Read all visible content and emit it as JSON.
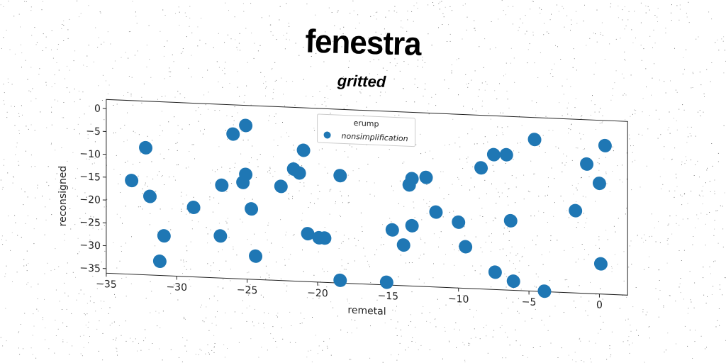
{
  "page": {
    "title": "fenestra"
  },
  "colors": {
    "marker": "#1f77b4",
    "axes": "#222222",
    "background": "#ffffff"
  },
  "chart_data": {
    "type": "scatter",
    "title": "gritted",
    "xlabel": "remetal",
    "ylabel": "reconsigned",
    "xlim": [
      -35,
      2
    ],
    "ylim": [
      -36,
      2
    ],
    "xticks": [
      -35,
      -30,
      -25,
      -20,
      -15,
      -10,
      -5,
      0
    ],
    "yticks": [
      0,
      -5,
      -10,
      -15,
      -20,
      -25,
      -30,
      -35
    ],
    "xtick_labels": [
      "−35",
      "−30",
      "−25",
      "−20",
      "−15",
      "−10",
      "−5",
      "0"
    ],
    "ytick_labels": [
      "0",
      "−5",
      "−10",
      "−15",
      "−20",
      "−25",
      "−30",
      "−35"
    ],
    "grid": false,
    "legend": {
      "title": "erump",
      "placement": "top-center"
    },
    "series": [
      {
        "name": "nonsimplification",
        "color": "#1f77b4",
        "x": [
          -33.2,
          -32.2,
          -31.9,
          -30.9,
          -31.2,
          -28.8,
          -26.8,
          -26.9,
          -26.0,
          -25.1,
          -25.3,
          -25.1,
          -24.7,
          -24.4,
          -22.6,
          -21.7,
          -21.3,
          -21.0,
          -20.7,
          -19.9,
          -19.5,
          -18.4,
          -18.4,
          -16.2,
          -15.1,
          -14.7,
          -13.9,
          -13.5,
          -13.3,
          -13.3,
          -12.3,
          -11.6,
          -10.0,
          -9.5,
          -8.4,
          -7.5,
          -7.4,
          -6.6,
          -6.3,
          -6.1,
          -3.9,
          -4.6,
          -1.7,
          -0.9,
          0.1,
          0.0,
          0.4
        ],
        "y": [
          -15.5,
          -8.2,
          -18.8,
          -27.3,
          -32.9,
          -20.8,
          -15.7,
          -26.8,
          -4.4,
          -2.4,
          -14.9,
          -13.1,
          -20.6,
          -30.9,
          -15.4,
          -11.5,
          -12.3,
          -7.3,
          -25.5,
          -26.3,
          -26.3,
          -12.5,
          -35.4,
          -1.8,
          -35.4,
          -23.9,
          -27.1,
          -13.9,
          -12.5,
          -22.8,
          -12.1,
          -19.6,
          -21.6,
          -26.9,
          -9.5,
          -6.5,
          -32.2,
          -6.4,
          -20.8,
          -34.0,
          -35.9,
          -2.8,
          -18.0,
          -7.7,
          -29.4,
          -11.8,
          -3.5
        ]
      }
    ]
  }
}
